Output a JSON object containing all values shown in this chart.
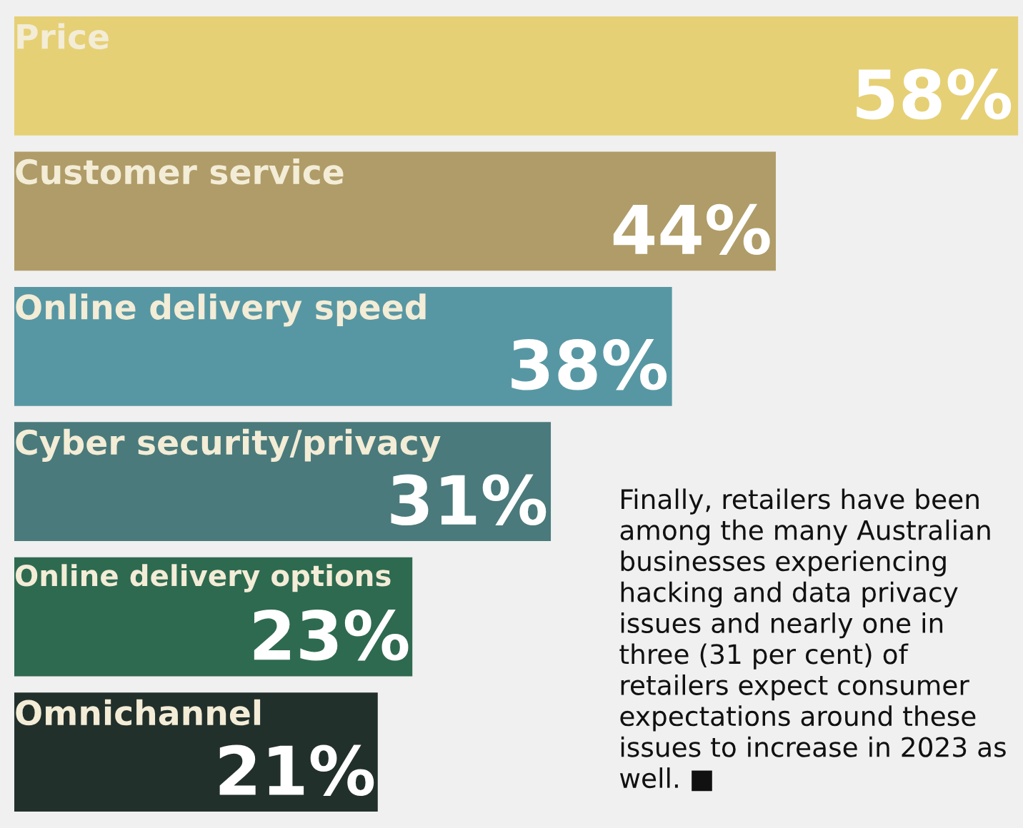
{
  "chart_data": {
    "type": "bar",
    "orientation": "horizontal",
    "categories": [
      "Price",
      "Customer service",
      "Online delivery speed",
      "Cyber security/privacy",
      "Online delivery options",
      "Omnichannel"
    ],
    "values": [
      58,
      44,
      38,
      31,
      23,
      21
    ],
    "value_labels": [
      "58%",
      "44%",
      "38%",
      "31%",
      "23%",
      "21%"
    ],
    "colors": [
      "#e6d075",
      "#b09c68",
      "#5797a3",
      "#4a7a7b",
      "#2e6a50",
      "#22302c"
    ],
    "annotations": [
      "Finally, retailers have been among the many Australian businesses experiencing hacking and data privacy issues and nearly one in three (31 per cent) of retailers expect consumer expectations around these issues to increase in 2023 as well. ■"
    ],
    "data_labels": true
  }
}
